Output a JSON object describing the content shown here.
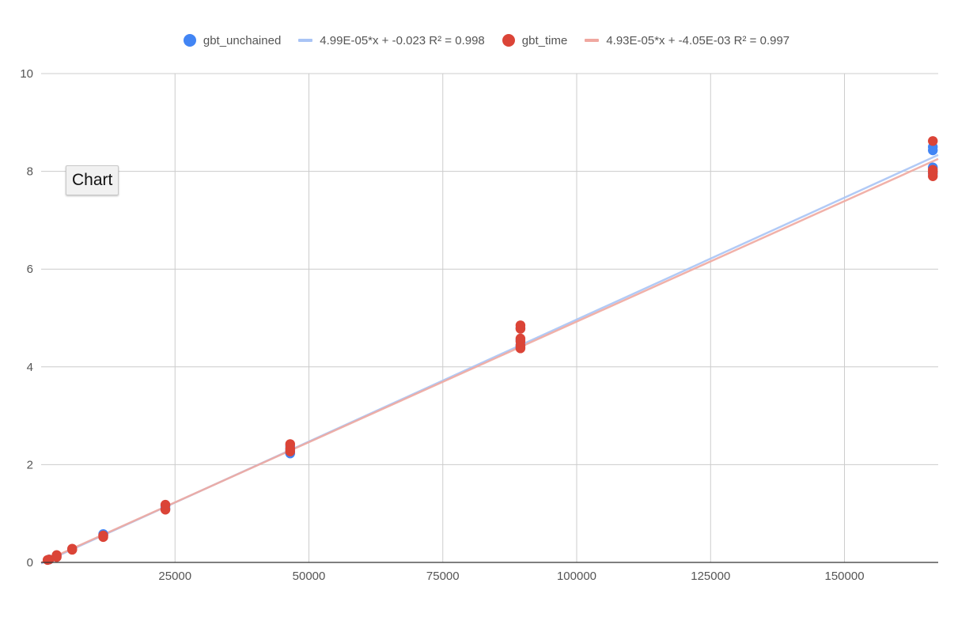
{
  "tooltip": {
    "text": "Chart"
  },
  "legend": [
    {
      "label": "gbt_unchained",
      "kind": "dot",
      "color": "#4285f4"
    },
    {
      "label": "4.99E-05*x + -0.023 R² = 0.998",
      "kind": "line",
      "color": "#a9c4f5"
    },
    {
      "label": "gbt_time",
      "kind": "dot",
      "color": "#db4437"
    },
    {
      "label": "4.93E-05*x + -4.05E-03 R² = 0.997",
      "kind": "line",
      "color": "#f0a8a0"
    }
  ],
  "chart_data": {
    "type": "scatter",
    "title": "",
    "xlabel": "",
    "ylabel": "",
    "xlim": [
      0,
      167500
    ],
    "ylim": [
      0,
      10
    ],
    "x_ticks": [
      "25000",
      "50000",
      "75000",
      "100000",
      "125000",
      "150000"
    ],
    "y_ticks": [
      "0",
      "2",
      "4",
      "6",
      "8",
      "10"
    ],
    "grid": true,
    "legend_position": "top",
    "series": [
      {
        "name": "gbt_unchained",
        "color": "#4285f4",
        "points": [
          [
            1500,
            0.06
          ],
          [
            2900,
            0.13
          ],
          [
            5800,
            0.27
          ],
          [
            11600,
            0.58
          ],
          [
            11600,
            0.56
          ],
          [
            23200,
            1.15
          ],
          [
            23200,
            1.1
          ],
          [
            46500,
            2.23
          ],
          [
            46500,
            2.3
          ],
          [
            46500,
            2.38
          ],
          [
            89500,
            4.4
          ],
          [
            89500,
            4.45
          ],
          [
            89500,
            4.55
          ],
          [
            89500,
            4.8
          ],
          [
            166500,
            8.43
          ],
          [
            166500,
            8.5
          ],
          [
            166500,
            8.08
          ],
          [
            166500,
            7.95
          ]
        ]
      },
      {
        "name": "gbt_time",
        "color": "#db4437",
        "points": [
          [
            1200,
            0.05
          ],
          [
            1500,
            0.06
          ],
          [
            2900,
            0.11
          ],
          [
            2900,
            0.15
          ],
          [
            5800,
            0.26
          ],
          [
            5800,
            0.28
          ],
          [
            11600,
            0.52
          ],
          [
            11600,
            0.55
          ],
          [
            23200,
            1.08
          ],
          [
            23200,
            1.18
          ],
          [
            46500,
            2.27
          ],
          [
            46500,
            2.33
          ],
          [
            46500,
            2.42
          ],
          [
            89500,
            4.38
          ],
          [
            89500,
            4.43
          ],
          [
            89500,
            4.52
          ],
          [
            89500,
            4.58
          ],
          [
            89500,
            4.78
          ],
          [
            89500,
            4.85
          ],
          [
            166500,
            8.62
          ],
          [
            166500,
            8.03
          ],
          [
            166500,
            7.9
          ],
          [
            166500,
            7.98
          ]
        ]
      }
    ],
    "trendlines": [
      {
        "name": "4.99E-05*x + -0.023 R² = 0.998",
        "color": "#a9c4f5",
        "slope": 4.99e-05,
        "intercept": -0.023
      },
      {
        "name": "4.93E-05*x + -4.05E-03 R² = 0.997",
        "color": "#f0a8a0",
        "slope": 4.93e-05,
        "intercept": -0.00405
      }
    ]
  }
}
